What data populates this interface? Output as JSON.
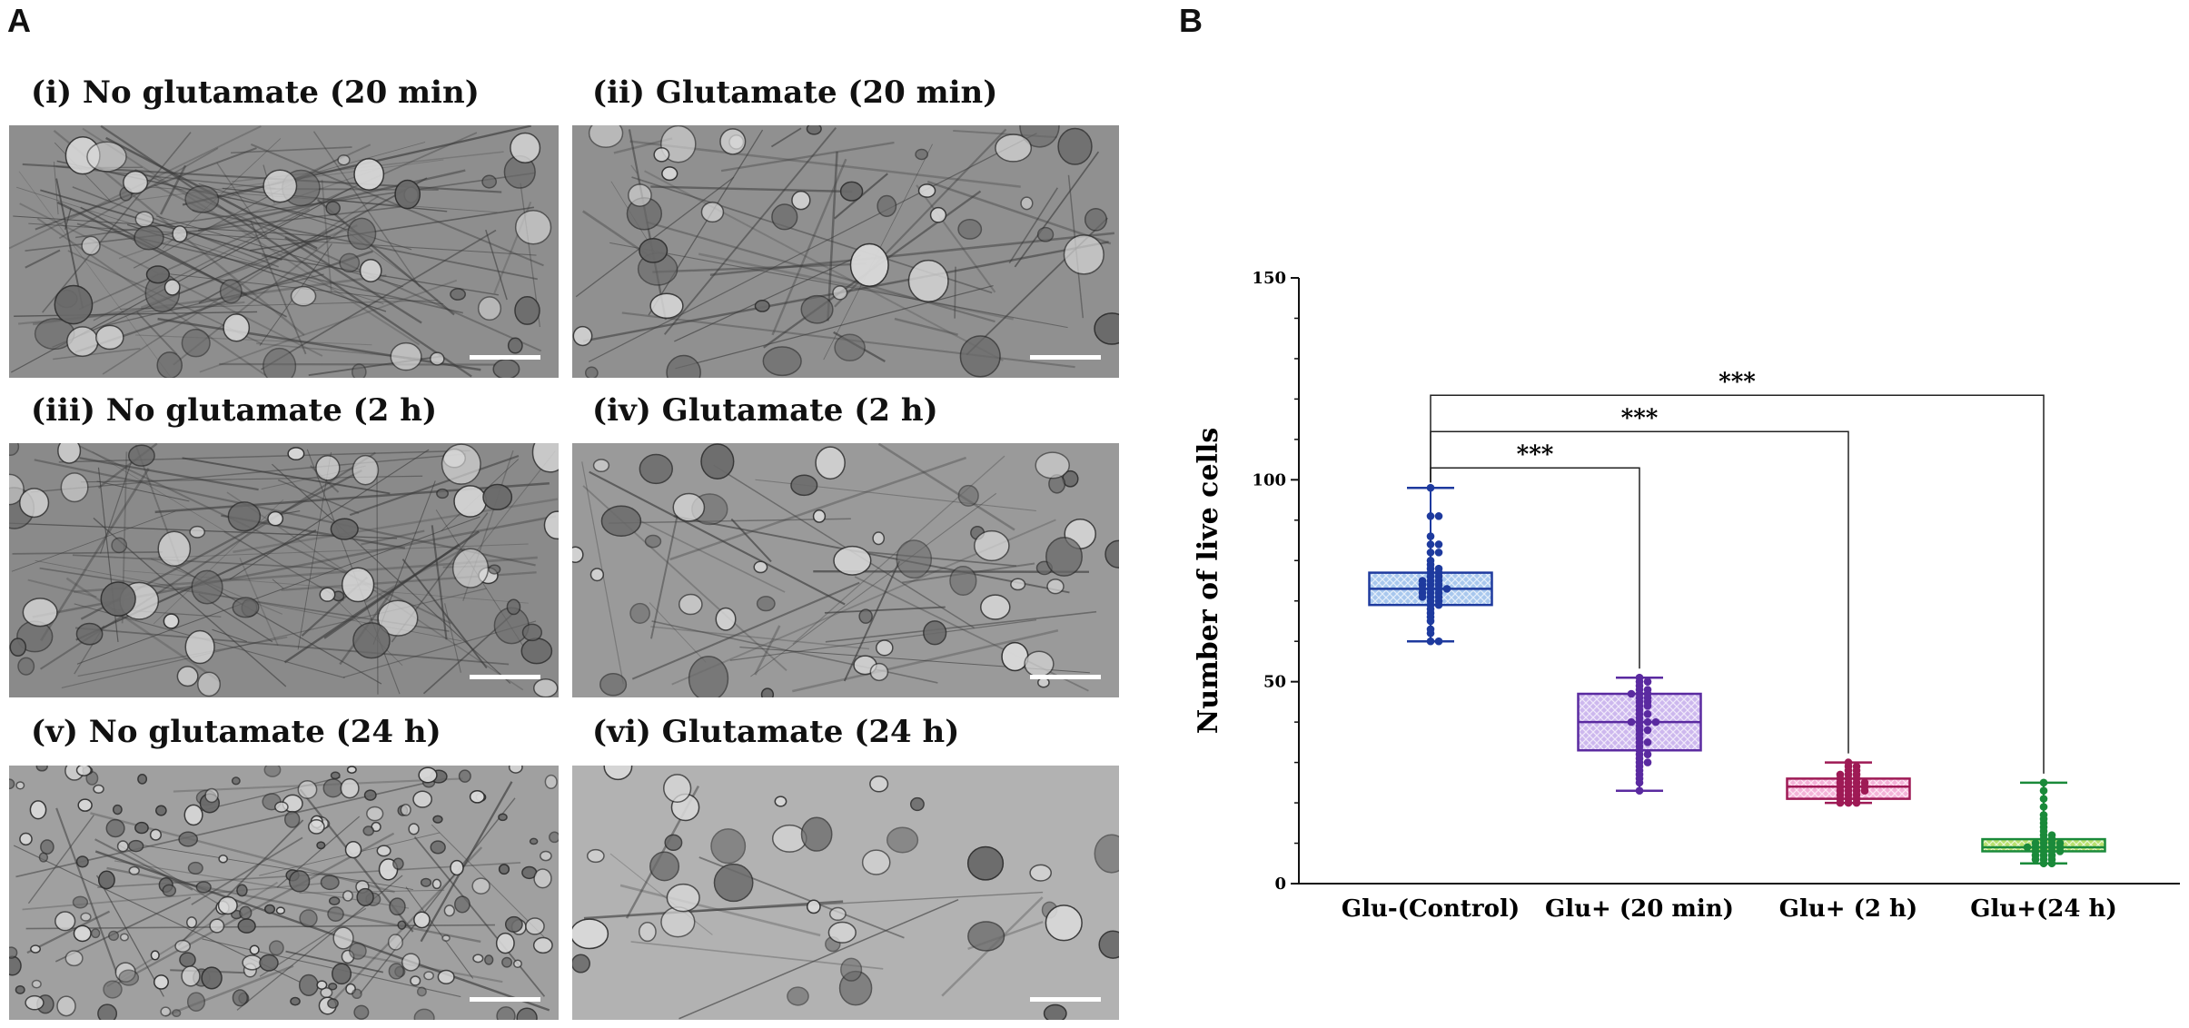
{
  "panel_a": {
    "letter": "A",
    "images": [
      {
        "title": "(i) No glutamate (20 min)"
      },
      {
        "title": "(ii) Glutamate (20 min)"
      },
      {
        "title": "(iii) No glutamate (2 h)"
      },
      {
        "title": "(iv) Glutamate (2 h)"
      },
      {
        "title": "(v) No glutamate (24 h)"
      },
      {
        "title": "(vi) Glutamate (24 h)"
      }
    ]
  },
  "panel_b": {
    "letter": "B"
  },
  "chart_data": {
    "type": "box",
    "ylabel": "Number of live cells",
    "xlabel": "",
    "ylim": [
      0,
      150
    ],
    "yticks": [
      0,
      50,
      100,
      150
    ],
    "grid": false,
    "categories": [
      "Glu-(Control)",
      "Glu+ (20 min)",
      "Glu+ (2 h)",
      "Glu+(24 h)"
    ],
    "series": [
      {
        "category": "Glu-(Control)",
        "color": "#1e3a9e",
        "fill": "#a9c8ee",
        "min": 60,
        "q1": 69,
        "median": 73,
        "q3": 77,
        "max": 98,
        "points": [
          98,
          91,
          91,
          86,
          84,
          84,
          82,
          82,
          80,
          79,
          78,
          78,
          77,
          77,
          76,
          76,
          75,
          75,
          75,
          74,
          74,
          74,
          73,
          73,
          73,
          73,
          72,
          72,
          72,
          71,
          71,
          71,
          70,
          70,
          69,
          69,
          68,
          67,
          66,
          65,
          63,
          62,
          60,
          60
        ]
      },
      {
        "category": "Glu+ (20 min)",
        "color": "#5a2aa0",
        "fill": "#cdb8ee",
        "min": 23,
        "q1": 33,
        "median": 40,
        "q3": 47,
        "max": 51,
        "points": [
          51,
          50,
          50,
          49,
          48,
          48,
          47,
          47,
          47,
          46,
          46,
          45,
          45,
          44,
          44,
          43,
          42,
          42,
          41,
          40,
          40,
          40,
          40,
          39,
          38,
          38,
          37,
          36,
          35,
          35,
          34,
          33,
          32,
          32,
          31,
          30,
          30,
          29,
          28,
          27,
          26,
          25,
          23
        ]
      },
      {
        "category": "Glu+ (2 h)",
        "color": "#9e1a55",
        "fill": "#f4b3d8",
        "min": 20,
        "q1": 21,
        "median": 24,
        "q3": 26,
        "max": 30,
        "points": [
          30,
          29,
          29,
          28,
          28,
          27,
          27,
          27,
          26,
          26,
          26,
          25,
          25,
          25,
          25,
          24,
          24,
          24,
          24,
          23,
          23,
          23,
          23,
          22,
          22,
          22,
          21,
          21,
          21,
          20,
          20,
          20
        ]
      },
      {
        "category": "Glu+(24 h)",
        "color": "#1a8a3a",
        "fill": "#b9e06e",
        "min": 5,
        "q1": 8,
        "median": 9,
        "q3": 11,
        "max": 25,
        "points": [
          25,
          23,
          21,
          19,
          17,
          16,
          15,
          14,
          13,
          12,
          12,
          11,
          11,
          10,
          10,
          10,
          10,
          9,
          9,
          9,
          9,
          9,
          8,
          8,
          8,
          8,
          7,
          7,
          7,
          6,
          6,
          6,
          5,
          5
        ]
      }
    ],
    "annotations": [
      {
        "from": "Glu-(Control)",
        "to": "Glu+ (20 min)",
        "label": "***"
      },
      {
        "from": "Glu-(Control)",
        "to": "Glu+ (2 h)",
        "label": "***"
      },
      {
        "from": "Glu-(Control)",
        "to": "Glu+(24 h)",
        "label": "***"
      }
    ]
  }
}
